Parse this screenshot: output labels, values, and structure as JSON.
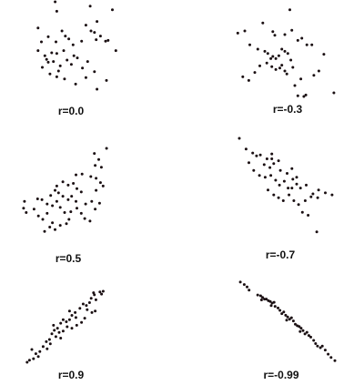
{
  "chart_data": [
    {
      "type": "scatter",
      "label": "r=0.0",
      "points": [
        [
          0.26,
          0.97
        ],
        [
          0.24,
          1.1
        ],
        [
          0.73,
          0.83
        ],
        [
          0.65,
          1.04
        ],
        [
          0.91,
          0.99
        ],
        [
          0.95,
          0.43
        ],
        [
          0.04,
          0.74
        ],
        [
          0.08,
          0.55
        ],
        [
          0.16,
          0.62
        ],
        [
          0.25,
          0.55
        ],
        [
          0.32,
          0.7
        ],
        [
          0.36,
          0.63
        ],
        [
          0.4,
          0.59
        ],
        [
          0.45,
          0.51
        ],
        [
          0.55,
          0.56
        ],
        [
          0.6,
          0.78
        ],
        [
          0.66,
          0.7
        ],
        [
          0.7,
          0.68
        ],
        [
          0.72,
          0.58
        ],
        [
          0.77,
          0.63
        ],
        [
          0.83,
          0.56
        ],
        [
          0.86,
          0.57
        ],
        [
          0.04,
          0.43
        ],
        [
          0.12,
          0.36
        ],
        [
          0.14,
          0.31
        ],
        [
          0.16,
          0.27
        ],
        [
          0.2,
          0.4
        ],
        [
          0.22,
          0.28
        ],
        [
          0.26,
          0.39
        ],
        [
          0.3,
          0.22
        ],
        [
          0.34,
          0.43
        ],
        [
          0.38,
          0.3
        ],
        [
          0.43,
          0.24
        ],
        [
          0.46,
          0.36
        ],
        [
          0.5,
          0.33
        ],
        [
          0.56,
          0.19
        ],
        [
          0.62,
          0.28
        ],
        [
          0.7,
          0.14
        ],
        [
          0.18,
          0.11
        ],
        [
          0.26,
          0.07
        ],
        [
          0.35,
          0.04
        ],
        [
          0.48,
          -0.03
        ],
        [
          0.6,
          0.06
        ],
        [
          0.73,
          -0.1
        ],
        [
          0.84,
          0.02
        ],
        [
          0.09,
          0.2
        ],
        [
          0.28,
          0.15
        ]
      ]
    },
    {
      "type": "scatter",
      "label": "r=-0.3",
      "points": [
        [
          0.55,
          1.09
        ],
        [
          0.28,
          0.91
        ],
        [
          0.1,
          0.8
        ],
        [
          0.03,
          0.77
        ],
        [
          0.38,
          0.79
        ],
        [
          0.4,
          0.74
        ],
        [
          0.5,
          0.75
        ],
        [
          0.57,
          0.81
        ],
        [
          0.63,
          0.67
        ],
        [
          0.67,
          0.7
        ],
        [
          0.72,
          0.61
        ],
        [
          0.77,
          0.61
        ],
        [
          0.89,
          0.48
        ],
        [
          0.15,
          0.61
        ],
        [
          0.23,
          0.55
        ],
        [
          0.3,
          0.52
        ],
        [
          0.33,
          0.49
        ],
        [
          0.38,
          0.45
        ],
        [
          0.41,
          0.42
        ],
        [
          0.44,
          0.46
        ],
        [
          0.47,
          0.55
        ],
        [
          0.5,
          0.52
        ],
        [
          0.53,
          0.49
        ],
        [
          0.56,
          0.4
        ],
        [
          0.32,
          0.36
        ],
        [
          0.37,
          0.31
        ],
        [
          0.41,
          0.27
        ],
        [
          0.45,
          0.29
        ],
        [
          0.47,
          0.33
        ],
        [
          0.5,
          0.25
        ],
        [
          0.52,
          0.21
        ],
        [
          0.58,
          0.3
        ],
        [
          0.66,
          0.14
        ],
        [
          0.79,
          0.19
        ],
        [
          0.84,
          0.25
        ],
        [
          0.08,
          0.17
        ],
        [
          0.14,
          0.12
        ],
        [
          0.2,
          0.23
        ],
        [
          0.25,
          0.32
        ],
        [
          0.6,
          0.05
        ],
        [
          0.63,
          -0.09
        ],
        [
          0.69,
          -0.1
        ],
        [
          0.71,
          -0.08
        ],
        [
          0.99,
          -0.05
        ],
        [
          0.36,
          0.42
        ]
      ]
    },
    {
      "type": "scatter",
      "label": "r=0.5",
      "points": [
        [
          0.97,
          1.0
        ],
        [
          0.83,
          0.94
        ],
        [
          0.88,
          0.87
        ],
        [
          0.84,
          0.8
        ],
        [
          0.91,
          0.78
        ],
        [
          0.62,
          0.69
        ],
        [
          0.69,
          0.7
        ],
        [
          0.79,
          0.67
        ],
        [
          0.85,
          0.65
        ],
        [
          0.9,
          0.6
        ],
        [
          0.4,
          0.56
        ],
        [
          0.47,
          0.61
        ],
        [
          0.53,
          0.57
        ],
        [
          0.59,
          0.59
        ],
        [
          0.63,
          0.53
        ],
        [
          0.68,
          0.49
        ],
        [
          0.85,
          0.51
        ],
        [
          0.93,
          0.56
        ],
        [
          0.33,
          0.45
        ],
        [
          0.38,
          0.51
        ],
        [
          0.42,
          0.48
        ],
        [
          0.47,
          0.44
        ],
        [
          0.53,
          0.4
        ],
        [
          0.57,
          0.44
        ],
        [
          0.62,
          0.38
        ],
        [
          0.73,
          0.35
        ],
        [
          0.8,
          0.38
        ],
        [
          0.84,
          0.29
        ],
        [
          0.89,
          0.36
        ],
        [
          0.18,
          0.41
        ],
        [
          0.23,
          0.4
        ],
        [
          0.29,
          0.35
        ],
        [
          0.35,
          0.33
        ],
        [
          0.4,
          0.38
        ],
        [
          0.44,
          0.31
        ],
        [
          0.49,
          0.25
        ],
        [
          0.56,
          0.26
        ],
        [
          0.63,
          0.3
        ],
        [
          0.68,
          0.24
        ],
        [
          0.72,
          0.18
        ],
        [
          0.78,
          0.15
        ],
        [
          0.14,
          0.29
        ],
        [
          0.19,
          0.21
        ],
        [
          0.24,
          0.17
        ],
        [
          0.29,
          0.24
        ],
        [
          0.35,
          0.13
        ],
        [
          0.44,
          0.1
        ],
        [
          0.51,
          0.12
        ],
        [
          0.54,
          0.17
        ],
        [
          0.26,
          0.03
        ],
        [
          0.32,
          0.08
        ],
        [
          0.38,
          0.05
        ],
        [
          0.02,
          0.3
        ],
        [
          0.03,
          0.38
        ],
        [
          0.05,
          0.25
        ]
      ]
    },
    {
      "type": "scatter",
      "label": "r=-0.7",
      "points": [
        [
          0.0,
          1.0
        ],
        [
          0.07,
          0.89
        ],
        [
          0.14,
          0.85
        ],
        [
          0.1,
          0.75
        ],
        [
          0.18,
          0.82
        ],
        [
          0.22,
          0.83
        ],
        [
          0.29,
          0.79
        ],
        [
          0.34,
          0.84
        ],
        [
          0.34,
          0.79
        ],
        [
          0.26,
          0.73
        ],
        [
          0.32,
          0.7
        ],
        [
          0.36,
          0.74
        ],
        [
          0.41,
          0.77
        ],
        [
          0.43,
          0.67
        ],
        [
          0.5,
          0.64
        ],
        [
          0.55,
          0.69
        ],
        [
          0.15,
          0.67
        ],
        [
          0.21,
          0.62
        ],
        [
          0.27,
          0.6
        ],
        [
          0.33,
          0.62
        ],
        [
          0.38,
          0.57
        ],
        [
          0.42,
          0.52
        ],
        [
          0.47,
          0.56
        ],
        [
          0.51,
          0.49
        ],
        [
          0.56,
          0.58
        ],
        [
          0.6,
          0.53
        ],
        [
          0.64,
          0.49
        ],
        [
          0.7,
          0.52
        ],
        [
          0.77,
          0.43
        ],
        [
          0.83,
          0.47
        ],
        [
          0.9,
          0.44
        ],
        [
          0.97,
          0.42
        ],
        [
          0.3,
          0.47
        ],
        [
          0.36,
          0.42
        ],
        [
          0.41,
          0.39
        ],
        [
          0.46,
          0.36
        ],
        [
          0.52,
          0.42
        ],
        [
          0.57,
          0.36
        ],
        [
          0.62,
          0.32
        ],
        [
          0.69,
          0.36
        ],
        [
          0.75,
          0.4
        ],
        [
          0.82,
          0.39
        ],
        [
          0.66,
          0.24
        ],
        [
          0.72,
          0.21
        ],
        [
          0.81,
          0.04
        ],
        [
          0.55,
          0.49
        ],
        [
          0.6,
          0.6
        ]
      ]
    },
    {
      "type": "scatter",
      "label": "r=0.9",
      "points": [
        [
          0.97,
          1.0
        ],
        [
          0.95,
          0.96
        ],
        [
          0.93,
          0.99
        ],
        [
          0.86,
          0.95
        ],
        [
          0.85,
          0.98
        ],
        [
          0.82,
          0.9
        ],
        [
          0.88,
          0.88
        ],
        [
          0.8,
          0.84
        ],
        [
          0.76,
          0.8
        ],
        [
          0.72,
          0.82
        ],
        [
          0.68,
          0.76
        ],
        [
          0.77,
          0.74
        ],
        [
          0.83,
          0.7
        ],
        [
          0.87,
          0.72
        ],
        [
          0.62,
          0.7
        ],
        [
          0.58,
          0.66
        ],
        [
          0.63,
          0.63
        ],
        [
          0.55,
          0.6
        ],
        [
          0.51,
          0.57
        ],
        [
          0.47,
          0.6
        ],
        [
          0.44,
          0.55
        ],
        [
          0.52,
          0.5
        ],
        [
          0.58,
          0.48
        ],
        [
          0.64,
          0.52
        ],
        [
          0.7,
          0.56
        ],
        [
          0.74,
          0.62
        ],
        [
          0.4,
          0.48
        ],
        [
          0.36,
          0.45
        ],
        [
          0.42,
          0.42
        ],
        [
          0.47,
          0.44
        ],
        [
          0.33,
          0.4
        ],
        [
          0.38,
          0.36
        ],
        [
          0.44,
          0.34
        ],
        [
          0.3,
          0.32
        ],
        [
          0.26,
          0.29
        ],
        [
          0.31,
          0.26
        ],
        [
          0.22,
          0.22
        ],
        [
          0.27,
          0.19
        ],
        [
          0.18,
          0.15
        ],
        [
          0.13,
          0.12
        ],
        [
          0.16,
          0.08
        ],
        [
          0.1,
          0.05
        ],
        [
          0.05,
          0.03
        ],
        [
          0.02,
          0.0
        ],
        [
          0.08,
          0.18
        ],
        [
          0.35,
          0.52
        ],
        [
          0.55,
          0.72
        ]
      ]
    },
    {
      "type": "scatter",
      "label": "r=-0.99",
      "points": [
        [
          0.02,
          0.99
        ],
        [
          0.06,
          0.96
        ],
        [
          0.09,
          0.93
        ],
        [
          0.11,
          0.89
        ],
        [
          0.2,
          0.83
        ],
        [
          0.23,
          0.82
        ],
        [
          0.25,
          0.8
        ],
        [
          0.27,
          0.78
        ],
        [
          0.29,
          0.78
        ],
        [
          0.31,
          0.76
        ],
        [
          0.33,
          0.75
        ],
        [
          0.35,
          0.73
        ],
        [
          0.37,
          0.74
        ],
        [
          0.38,
          0.69
        ],
        [
          0.41,
          0.67
        ],
        [
          0.43,
          0.64
        ],
        [
          0.45,
          0.6
        ],
        [
          0.47,
          0.62
        ],
        [
          0.49,
          0.58
        ],
        [
          0.51,
          0.56
        ],
        [
          0.53,
          0.53
        ],
        [
          0.55,
          0.55
        ],
        [
          0.57,
          0.51
        ],
        [
          0.59,
          0.47
        ],
        [
          0.61,
          0.45
        ],
        [
          0.63,
          0.44
        ],
        [
          0.65,
          0.42
        ],
        [
          0.67,
          0.39
        ],
        [
          0.69,
          0.35
        ],
        [
          0.71,
          0.37
        ],
        [
          0.73,
          0.33
        ],
        [
          0.75,
          0.31
        ],
        [
          0.78,
          0.27
        ],
        [
          0.8,
          0.23
        ],
        [
          0.82,
          0.2
        ],
        [
          0.85,
          0.18
        ],
        [
          0.87,
          0.2
        ],
        [
          0.9,
          0.15
        ],
        [
          0.93,
          0.1
        ],
        [
          0.96,
          0.06
        ],
        [
          1.0,
          0.02
        ],
        [
          0.24,
          0.77
        ],
        [
          0.34,
          0.7
        ],
        [
          0.5,
          0.52
        ],
        [
          0.64,
          0.38
        ]
      ]
    }
  ]
}
